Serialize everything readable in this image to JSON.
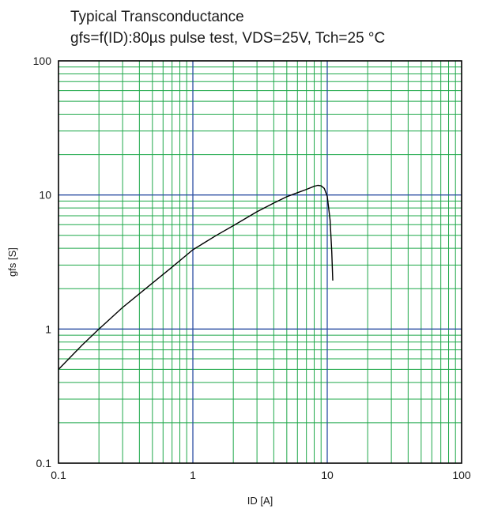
{
  "chart_data": {
    "type": "line",
    "title": "Typical Transconductance",
    "subtitle": "gfs=f(ID):80µs pulse test, VDS=25V, Tch=25  °C",
    "xlabel": "ID [A]",
    "ylabel": "gfs [S]",
    "xscale": "log",
    "yscale": "log",
    "xlim": [
      0.1,
      100
    ],
    "ylim": [
      0.1,
      100
    ],
    "xticks": [
      "0.1",
      "1",
      "10",
      "100"
    ],
    "yticks": [
      "0.1",
      "1",
      "10",
      "100"
    ],
    "grid": true,
    "colors": {
      "major_grid": "#2d4fa3",
      "minor_grid": "#1fa84a",
      "frame": "#000000",
      "series": "#000000"
    },
    "series": [
      {
        "x": [
          0.1,
          0.15,
          0.2,
          0.3,
          0.5,
          0.7,
          1.0,
          1.5,
          2.0,
          3.0,
          4.0,
          5.0,
          6.0,
          7.0,
          8.0,
          8.5,
          9.0,
          9.5,
          10.0,
          10.5,
          10.8,
          11.0
        ],
        "y": [
          0.5,
          0.76,
          1.0,
          1.45,
          2.2,
          2.9,
          3.9,
          5.0,
          5.9,
          7.5,
          8.7,
          9.7,
          10.4,
          11.0,
          11.6,
          11.8,
          11.7,
          11.2,
          9.8,
          6.5,
          3.8,
          2.3
        ]
      }
    ]
  }
}
